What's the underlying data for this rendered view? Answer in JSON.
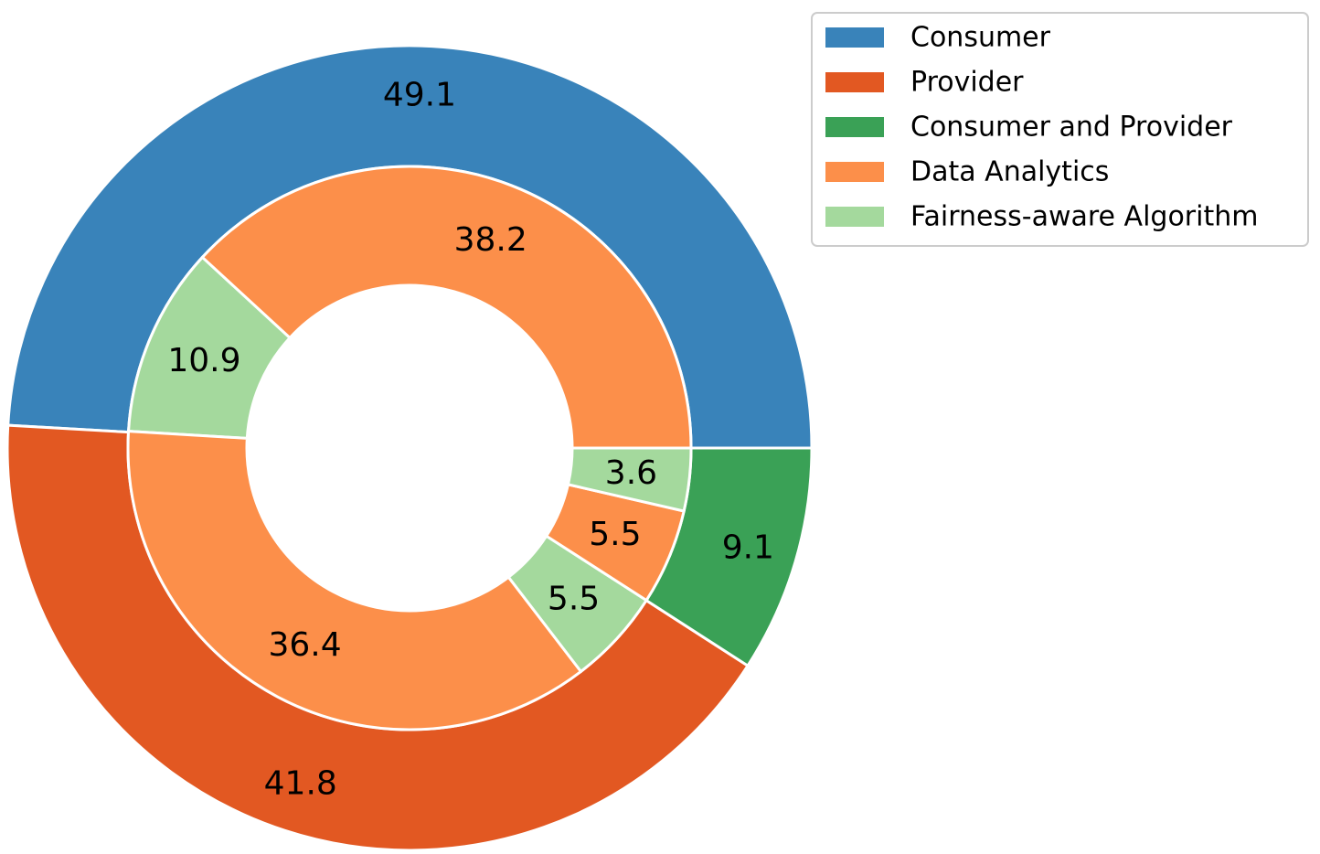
{
  "chart_data": {
    "type": "pie",
    "subtype": "nested-donut",
    "legend_position": "top-right",
    "legend": [
      {
        "label": "Consumer",
        "color": "#3983ba"
      },
      {
        "label": "Provider",
        "color": "#e25822"
      },
      {
        "label": "Consumer and Provider",
        "color": "#3aa156"
      },
      {
        "label": "Data Analytics",
        "color": "#fc8f4a"
      },
      {
        "label": "Fairness-aware Algorithm",
        "color": "#a4d99d"
      }
    ],
    "outer_ring": [
      {
        "category": "Consumer",
        "value": 49.1,
        "label": "49.1",
        "color": "#3983ba"
      },
      {
        "category": "Provider",
        "value": 41.8,
        "label": "41.8",
        "color": "#e25822"
      },
      {
        "category": "Consumer and Provider",
        "value": 9.1,
        "label": "9.1",
        "color": "#3aa156"
      }
    ],
    "inner_ring": [
      {
        "category": "Data Analytics",
        "parent": "Consumer",
        "value": 38.2,
        "label": "38.2",
        "color": "#fc8f4a"
      },
      {
        "category": "Fairness-aware Algorithm",
        "parent": "Consumer",
        "value": 10.9,
        "label": "10.9",
        "color": "#a4d99d"
      },
      {
        "category": "Data Analytics",
        "parent": "Provider",
        "value": 36.4,
        "label": "36.4",
        "color": "#fc8f4a"
      },
      {
        "category": "Fairness-aware Algorithm",
        "parent": "Provider",
        "value": 5.5,
        "label": "5.5",
        "color": "#a4d99d"
      },
      {
        "category": "Data Analytics",
        "parent": "Consumer and Provider",
        "value": 5.5,
        "label": "5.5",
        "color": "#fc8f4a"
      },
      {
        "category": "Fairness-aware Algorithm",
        "parent": "Consumer and Provider",
        "value": 3.6,
        "label": "3.6",
        "color": "#a4d99d"
      }
    ]
  }
}
